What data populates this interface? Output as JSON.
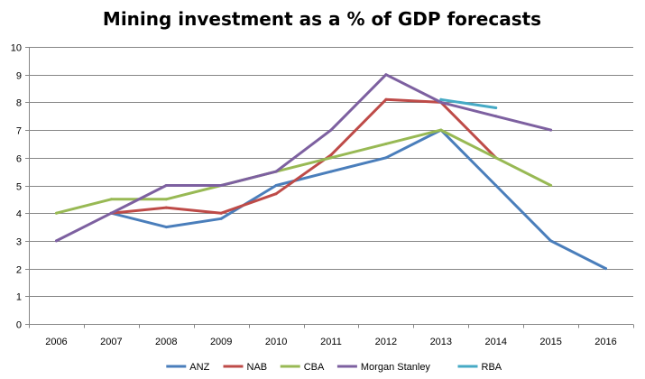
{
  "chart_data": {
    "type": "line",
    "title": "Mining investment as a % of GDP forecasts",
    "xlabel": "",
    "ylabel": "",
    "categories": [
      "2006",
      "2007",
      "2008",
      "2009",
      "2010",
      "2011",
      "2012",
      "2013",
      "2014",
      "2015",
      "2016"
    ],
    "ylim": [
      0,
      10
    ],
    "yticks": [
      0,
      1,
      2,
      3,
      4,
      5,
      6,
      7,
      8,
      9,
      10
    ],
    "grid": true,
    "legend_position": "bottom",
    "series": [
      {
        "name": "ANZ",
        "color": "#4a7ebb",
        "values": [
          null,
          4.0,
          3.5,
          3.8,
          5.0,
          5.5,
          6.0,
          7.0,
          5.0,
          3.0,
          2.0
        ]
      },
      {
        "name": "NAB",
        "color": "#be4b48",
        "values": [
          null,
          4.0,
          4.2,
          4.0,
          4.7,
          6.1,
          8.1,
          8.0,
          6.0,
          null,
          null
        ]
      },
      {
        "name": "CBA",
        "color": "#98b954",
        "values": [
          4.0,
          4.5,
          4.5,
          5.0,
          5.5,
          6.0,
          6.5,
          7.0,
          6.0,
          5.0,
          null
        ]
      },
      {
        "name": "Morgan Stanley",
        "color": "#7d60a0",
        "values": [
          3.0,
          4.0,
          5.0,
          5.0,
          5.5,
          7.0,
          9.0,
          8.0,
          7.5,
          7.0,
          null
        ]
      },
      {
        "name": "RBA",
        "color": "#46aac5",
        "values": [
          null,
          null,
          null,
          null,
          null,
          null,
          null,
          8.1,
          7.8,
          null,
          null
        ]
      }
    ]
  }
}
